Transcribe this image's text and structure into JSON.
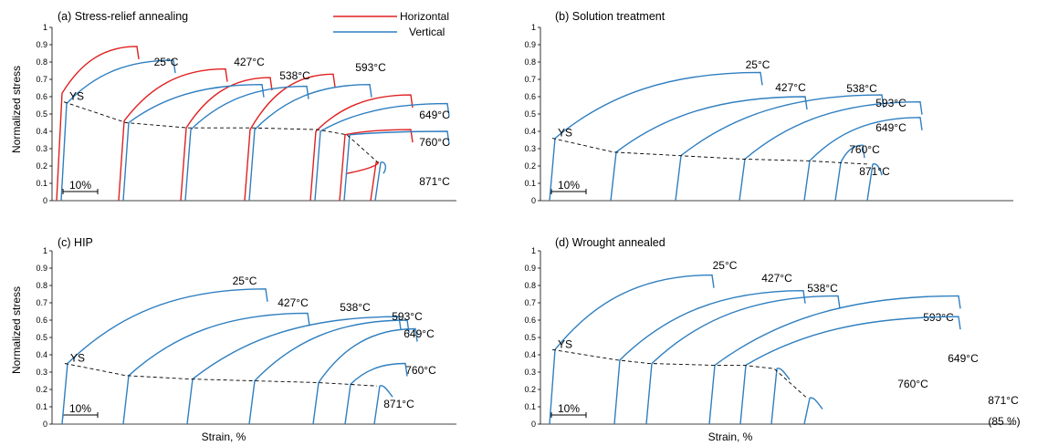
{
  "figure": {
    "ylabel": "Normalized stress",
    "xlabel": "Strain, %",
    "scale_bar": "10%",
    "ys_label": "YS",
    "legend": [
      {
        "name": "Horizontal",
        "color": "#e02020"
      },
      {
        "name": "Vertical",
        "color": "#2f7fc0"
      }
    ],
    "yticks": [
      "0",
      "0.1",
      "0.2",
      "0.3",
      "0.4",
      "0.5",
      "0.6",
      "0.7",
      "0.8",
      "0.9",
      "1"
    ]
  },
  "chart_data": [
    {
      "type": "line",
      "title": "(a)  Stress-relief annealing",
      "ylabel": "Normalized stress",
      "ylim": [
        0,
        1
      ],
      "series": [
        {
          "name": "Horizontal",
          "curves": [
            {
              "temp": "25°C",
              "yield": 0.62,
              "uts": 0.89
            },
            {
              "temp": "427°C",
              "yield": 0.46,
              "uts": 0.76
            },
            {
              "temp": "538°C",
              "yield": 0.42,
              "uts": 0.71
            },
            {
              "temp": "593°C",
              "yield": 0.41,
              "uts": 0.73
            },
            {
              "temp": "649°C",
              "yield": 0.4,
              "uts": 0.61
            },
            {
              "temp": "760°C",
              "yield": 0.38,
              "uts": 0.41
            },
            {
              "temp": "871°C",
              "yield": 0.22,
              "uts": 0.22
            }
          ]
        },
        {
          "name": "Vertical",
          "curves": [
            {
              "temp": "25°C",
              "yield": 0.56,
              "uts": 0.81
            },
            {
              "temp": "427°C",
              "yield": 0.45,
              "uts": 0.67
            },
            {
              "temp": "538°C",
              "yield": 0.41,
              "uts": 0.66
            },
            {
              "temp": "593°C",
              "yield": 0.41,
              "uts": 0.67
            },
            {
              "temp": "649°C",
              "yield": 0.4,
              "uts": 0.56
            },
            {
              "temp": "760°C",
              "yield": 0.38,
              "uts": 0.4
            },
            {
              "temp": "871°C",
              "yield": 0.22,
              "uts": 0.22
            }
          ]
        }
      ],
      "ys_curve": [
        0.57,
        0.45,
        0.42,
        0.42,
        0.41,
        0.38,
        0.22
      ]
    },
    {
      "type": "line",
      "title": "(b)  Solution treatment",
      "ylim": [
        0,
        1
      ],
      "series": [
        {
          "name": "Vertical",
          "curves": [
            {
              "temp": "25°C",
              "yield": 0.36,
              "uts": 0.74
            },
            {
              "temp": "427°C",
              "yield": 0.28,
              "uts": 0.6
            },
            {
              "temp": "538°C",
              "yield": 0.26,
              "uts": 0.61
            },
            {
              "temp": "593°C",
              "yield": 0.24,
              "uts": 0.57
            },
            {
              "temp": "649°C",
              "yield": 0.23,
              "uts": 0.48
            },
            {
              "temp": "760°C",
              "yield": 0.22,
              "uts": 0.32
            },
            {
              "temp": "871°C",
              "yield": 0.21,
              "uts": 0.21
            }
          ]
        }
      ],
      "ys_curve": [
        0.36,
        0.28,
        0.26,
        0.24,
        0.23,
        0.22,
        0.21
      ]
    },
    {
      "type": "line",
      "title": "(c)        HIP",
      "ylim": [
        0,
        1
      ],
      "series": [
        {
          "name": "Vertical",
          "curves": [
            {
              "temp": "25°C",
              "yield": 0.35,
              "uts": 0.78
            },
            {
              "temp": "427°C",
              "yield": 0.28,
              "uts": 0.64
            },
            {
              "temp": "538°C",
              "yield": 0.26,
              "uts": 0.62
            },
            {
              "temp": "593°C",
              "yield": 0.25,
              "uts": 0.6
            },
            {
              "temp": "649°C",
              "yield": 0.24,
              "uts": 0.55
            },
            {
              "temp": "760°C",
              "yield": 0.23,
              "uts": 0.35
            },
            {
              "temp": "871°C",
              "yield": 0.22,
              "uts": 0.22
            }
          ]
        }
      ],
      "ys_curve": [
        0.35,
        0.28,
        0.26,
        0.25,
        0.24,
        0.23,
        0.22
      ]
    },
    {
      "type": "line",
      "title": "(d)  Wrought annealed",
      "ylim": [
        0,
        1
      ],
      "series": [
        {
          "name": "Vertical",
          "curves": [
            {
              "temp": "25°C",
              "yield": 0.43,
              "uts": 0.86
            },
            {
              "temp": "427°C",
              "yield": 0.37,
              "uts": 0.77
            },
            {
              "temp": "538°C",
              "yield": 0.35,
              "uts": 0.74
            },
            {
              "temp": "593°C",
              "yield": 0.34,
              "uts": 0.74
            },
            {
              "temp": "649°C",
              "yield": 0.34,
              "uts": 0.62
            },
            {
              "temp": "760°C",
              "yield": 0.32,
              "uts": 0.32
            },
            {
              "temp": "871°C",
              "yield": 0.15,
              "uts": 0.15
            }
          ]
        }
      ],
      "ys_curve": [
        0.43,
        0.37,
        0.35,
        0.34,
        0.34,
        0.32,
        0.15
      ],
      "annotation": "(85 %)"
    }
  ]
}
